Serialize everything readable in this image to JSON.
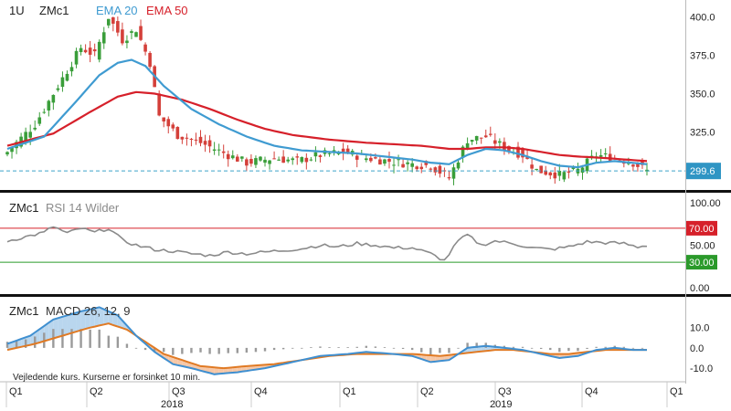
{
  "header": {
    "interval": "1U",
    "symbol": "ZMc1",
    "ema20_label": "EMA 20",
    "ema50_label": "EMA 50"
  },
  "colors": {
    "up": "#3a9e3a",
    "down": "#d4403a",
    "ema20": "#3f9bd1",
    "ema50": "#d6202a",
    "rsi": "#8a8a8a",
    "rsi_upper": "#d6202a",
    "rsi_lower": "#2b9a2b",
    "macd": "#3f8fd0",
    "signal": "#e07a24",
    "hist": "#9a9a9a",
    "fill_pos": "#b9d6ee",
    "fill_neg": "#f6c7a6",
    "dashed": "#3fa4c9"
  },
  "price_panel": {
    "ticks": [
      "400.0",
      "375.0",
      "350.0",
      "325.0"
    ],
    "tick_values": [
      400,
      375,
      350,
      325
    ],
    "last_price_label": "299.6",
    "last_price": 299.6,
    "ylim": [
      289,
      405
    ]
  },
  "rsi_panel": {
    "symbol": "ZMc1",
    "title": "RSI 14 Wilder",
    "ticks": [
      "100.00",
      "70.00",
      "50.00",
      "30.00",
      "0.00"
    ],
    "tick_values": [
      100,
      70,
      50,
      30,
      0
    ],
    "upper_label": "70.00",
    "lower_label": "30.00",
    "upper": 70,
    "lower": 30
  },
  "macd_panel": {
    "symbol": "ZMc1",
    "title": "MACD 26, 12, 9",
    "ticks": [
      "10.0",
      "0.0",
      "-10.0"
    ],
    "tick_values": [
      10,
      0,
      -10
    ],
    "disclaimer": "Vejledende kurs. Kurserne er forsinket 10 min."
  },
  "x_axis": {
    "quarters": [
      "Q1",
      "Q2",
      "Q3",
      "Q4",
      "Q1",
      "Q2",
      "Q3",
      "Q4",
      "Q1"
    ],
    "years": [
      "2018",
      "2019"
    ]
  },
  "chart_data": {
    "type": "line",
    "price": {
      "start": 312,
      "end": 299.6,
      "anchors": [
        [
          0,
          312
        ],
        [
          6,
          330
        ],
        [
          12,
          360
        ],
        [
          16,
          380
        ],
        [
          19,
          375
        ],
        [
          22,
          400
        ],
        [
          25,
          385
        ],
        [
          28,
          392
        ],
        [
          31,
          370
        ],
        [
          33,
          335
        ],
        [
          37,
          323
        ],
        [
          42,
          318
        ],
        [
          48,
          310
        ],
        [
          52,
          305
        ],
        [
          58,
          308
        ],
        [
          63,
          306
        ],
        [
          68,
          310
        ],
        [
          73,
          312
        ],
        [
          78,
          308
        ],
        [
          83,
          306
        ],
        [
          88,
          304
        ],
        [
          92,
          303
        ],
        [
          96,
          295
        ],
        [
          100,
          320
        ],
        [
          104,
          322
        ],
        [
          108,
          315
        ],
        [
          112,
          310
        ],
        [
          115,
          300
        ],
        [
          120,
          297
        ],
        [
          124,
          300
        ],
        [
          128,
          310
        ],
        [
          132,
          308
        ],
        [
          136,
          305
        ],
        [
          139,
          299.6
        ]
      ]
    },
    "ema20_anchors": [
      [
        0,
        314
      ],
      [
        8,
        322
      ],
      [
        15,
        345
      ],
      [
        20,
        362
      ],
      [
        24,
        370
      ],
      [
        27,
        372
      ],
      [
        30,
        368
      ],
      [
        34,
        355
      ],
      [
        40,
        340
      ],
      [
        46,
        330
      ],
      [
        52,
        322
      ],
      [
        58,
        316
      ],
      [
        64,
        313
      ],
      [
        70,
        312
      ],
      [
        76,
        311
      ],
      [
        82,
        309
      ],
      [
        88,
        307
      ],
      [
        92,
        305
      ],
      [
        96,
        304
      ],
      [
        100,
        310
      ],
      [
        104,
        314
      ],
      [
        108,
        313
      ],
      [
        112,
        310
      ],
      [
        116,
        306
      ],
      [
        120,
        303
      ],
      [
        124,
        302
      ],
      [
        128,
        305
      ],
      [
        132,
        306
      ],
      [
        139,
        304
      ]
    ],
    "ema50_anchors": [
      [
        0,
        316
      ],
      [
        10,
        324
      ],
      [
        18,
        338
      ],
      [
        24,
        348
      ],
      [
        28,
        351
      ],
      [
        32,
        350
      ],
      [
        38,
        346
      ],
      [
        44,
        340
      ],
      [
        50,
        333
      ],
      [
        56,
        327
      ],
      [
        62,
        323
      ],
      [
        70,
        320
      ],
      [
        78,
        318
      ],
      [
        84,
        317
      ],
      [
        90,
        316
      ],
      [
        96,
        314
      ],
      [
        100,
        314
      ],
      [
        104,
        315
      ],
      [
        108,
        315
      ],
      [
        112,
        314
      ],
      [
        116,
        312
      ],
      [
        120,
        310
      ],
      [
        124,
        309
      ],
      [
        130,
        308
      ],
      [
        139,
        306
      ]
    ],
    "rsi_anchors": [
      [
        0,
        55
      ],
      [
        4,
        60
      ],
      [
        8,
        65
      ],
      [
        10,
        72
      ],
      [
        13,
        64
      ],
      [
        16,
        70
      ],
      [
        19,
        65
      ],
      [
        22,
        70
      ],
      [
        25,
        56
      ],
      [
        28,
        50
      ],
      [
        32,
        45
      ],
      [
        36,
        43
      ],
      [
        40,
        40
      ],
      [
        44,
        38
      ],
      [
        48,
        42
      ],
      [
        52,
        40
      ],
      [
        56,
        42
      ],
      [
        60,
        44
      ],
      [
        64,
        46
      ],
      [
        68,
        50
      ],
      [
        72,
        48
      ],
      [
        76,
        52
      ],
      [
        80,
        50
      ],
      [
        84,
        47
      ],
      [
        88,
        47
      ],
      [
        92,
        40
      ],
      [
        95,
        32
      ],
      [
        98,
        55
      ],
      [
        100,
        62
      ],
      [
        103,
        50
      ],
      [
        106,
        55
      ],
      [
        110,
        52
      ],
      [
        114,
        47
      ],
      [
        118,
        45
      ],
      [
        122,
        48
      ],
      [
        126,
        54
      ],
      [
        130,
        53
      ],
      [
        134,
        52
      ],
      [
        137,
        48
      ],
      [
        139,
        50
      ]
    ],
    "macd_anchors": [
      [
        0,
        2
      ],
      [
        5,
        6
      ],
      [
        10,
        14
      ],
      [
        16,
        18
      ],
      [
        20,
        20
      ],
      [
        24,
        16
      ],
      [
        28,
        6
      ],
      [
        32,
        -2
      ],
      [
        36,
        -8
      ],
      [
        40,
        -10
      ],
      [
        45,
        -13
      ],
      [
        50,
        -12
      ],
      [
        56,
        -10
      ],
      [
        62,
        -7
      ],
      [
        68,
        -4
      ],
      [
        74,
        -3
      ],
      [
        78,
        -2
      ],
      [
        84,
        -3
      ],
      [
        88,
        -4
      ],
      [
        92,
        -7
      ],
      [
        96,
        -6
      ],
      [
        100,
        0
      ],
      [
        104,
        1
      ],
      [
        108,
        0
      ],
      [
        112,
        -1
      ],
      [
        116,
        -3
      ],
      [
        120,
        -5
      ],
      [
        124,
        -4
      ],
      [
        128,
        -1
      ],
      [
        132,
        0
      ],
      [
        136,
        -1
      ],
      [
        139,
        -1
      ]
    ],
    "signal_anchors": [
      [
        0,
        -1
      ],
      [
        6,
        2
      ],
      [
        12,
        6
      ],
      [
        18,
        10
      ],
      [
        22,
        12
      ],
      [
        26,
        9
      ],
      [
        30,
        3
      ],
      [
        34,
        -3
      ],
      [
        38,
        -6
      ],
      [
        42,
        -9
      ],
      [
        47,
        -10
      ],
      [
        52,
        -9
      ],
      [
        58,
        -8
      ],
      [
        64,
        -6
      ],
      [
        70,
        -4
      ],
      [
        76,
        -3
      ],
      [
        82,
        -3
      ],
      [
        88,
        -3
      ],
      [
        94,
        -4
      ],
      [
        98,
        -3
      ],
      [
        102,
        -2
      ],
      [
        106,
        -1
      ],
      [
        110,
        -1
      ],
      [
        114,
        -2
      ],
      [
        118,
        -3
      ],
      [
        122,
        -3
      ],
      [
        126,
        -2
      ],
      [
        130,
        -1
      ],
      [
        134,
        -1
      ],
      [
        139,
        -1
      ]
    ],
    "ranges": {
      "price": [
        289,
        405
      ],
      "rsi": [
        0,
        100
      ],
      "macd": [
        -14,
        22
      ]
    }
  }
}
